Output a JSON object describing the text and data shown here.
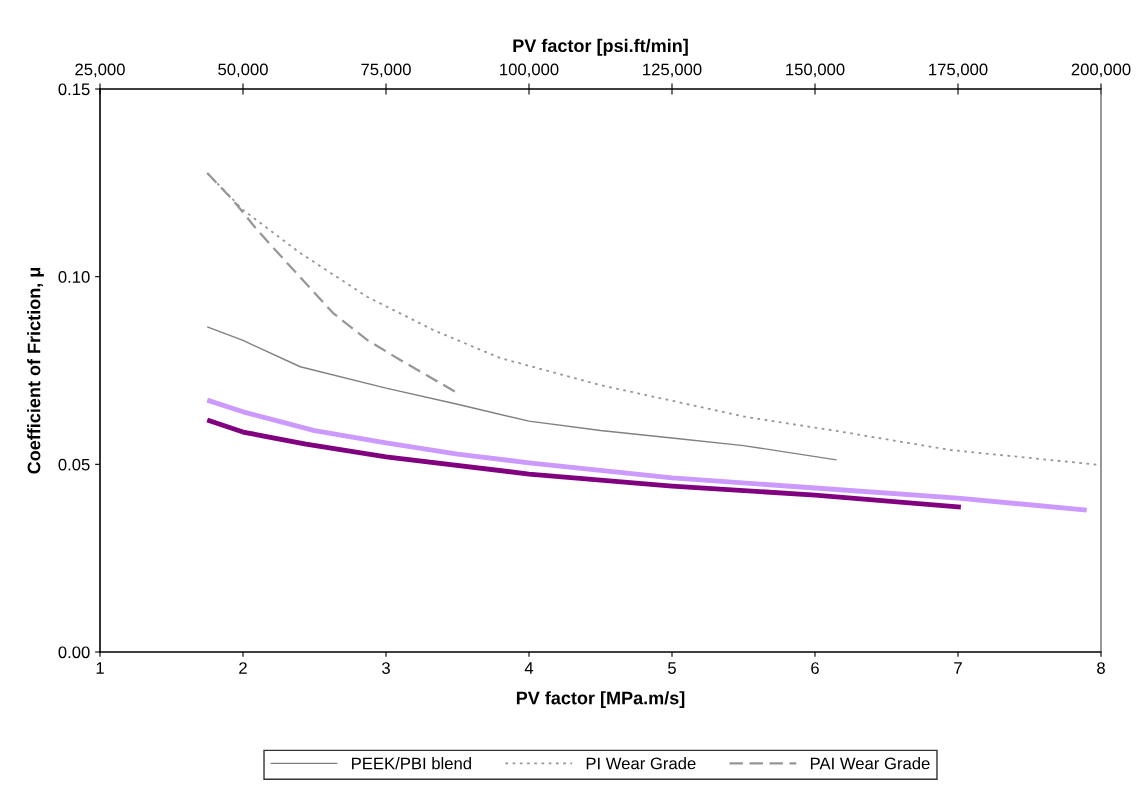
{
  "chart_data": {
    "type": "line",
    "xlabel": "PV factor [MPa.m/s]",
    "ylabel": "Coefficient of Friction, μ",
    "x2label": "PV factor [psi.ft/min]",
    "xlim": [
      1,
      8
    ],
    "xticks": [
      1,
      2,
      3,
      4,
      5,
      6,
      7,
      8
    ],
    "ylim": [
      0,
      0.15
    ],
    "yticks": [
      {
        "value": 0,
        "label": "0.00"
      },
      {
        "value": 0.05,
        "label": "0.05"
      },
      {
        "value": 0.1,
        "label": "0.10"
      },
      {
        "value": 0.15,
        "label": "0.15"
      }
    ],
    "x2lim": [
      25000,
      200000
    ],
    "x2ticks": [
      {
        "value": 25000,
        "label": "25,000"
      },
      {
        "value": 50000,
        "label": "50,000"
      },
      {
        "value": 75000,
        "label": "75,000"
      },
      {
        "value": 100000,
        "label": "100,000"
      },
      {
        "value": 125000,
        "label": "125,000"
      },
      {
        "value": 150000,
        "label": "150,000"
      },
      {
        "value": 175000,
        "label": "175,000"
      },
      {
        "value": 200000,
        "label": "200,000"
      }
    ],
    "grid": false,
    "legend": "bottom",
    "series": [
      {
        "color": "#800080",
        "line_style": "solid",
        "x": [
          1.75,
          2.0,
          2.44,
          3.0,
          4.0,
          5.0,
          6.0,
          7.02
        ],
        "values": [
          0.0618,
          0.0586,
          0.0554,
          0.052,
          0.0474,
          0.0442,
          0.0418,
          0.0386
        ]
      },
      {
        "color": "#cc99ff",
        "line_style": "solid",
        "x": [
          1.75,
          2.0,
          2.5,
          3.0,
          3.5,
          4.0,
          5.0,
          6.0,
          7.0,
          7.9
        ],
        "values": [
          0.0671,
          0.064,
          0.059,
          0.0557,
          0.0527,
          0.0504,
          0.0464,
          0.0437,
          0.041,
          0.0378
        ]
      },
      {
        "name": "PEEK/PBI blend",
        "color": "#808080",
        "line_style": "solid",
        "x": [
          1.75,
          2.0,
          2.4,
          3.0,
          3.5,
          4.0,
          4.5,
          5.0,
          5.5,
          6.15
        ],
        "values": [
          0.0866,
          0.083,
          0.076,
          0.0703,
          0.066,
          0.0615,
          0.059,
          0.057,
          0.055,
          0.0512
        ]
      },
      {
        "name": "PI Wear Grade",
        "color": "#969696",
        "line_style": "dotted",
        "x": [
          1.75,
          2.0,
          2.4,
          2.87,
          3.33,
          3.8,
          4.5,
          5.52,
          6.15,
          6.95,
          8.0
        ],
        "values": [
          0.1276,
          0.1178,
          0.1063,
          0.0946,
          0.0858,
          0.0783,
          0.0711,
          0.0626,
          0.0589,
          0.0538,
          0.0498
        ]
      },
      {
        "name": "PAI Wear Grade",
        "color": "#969696",
        "line_style": "dashed",
        "x": [
          1.75,
          1.93,
          2.1,
          2.31,
          2.63,
          2.87,
          3.1,
          3.5
        ],
        "values": [
          0.1276,
          0.1204,
          0.1124,
          0.1036,
          0.0903,
          0.0831,
          0.0778,
          0.069
        ]
      }
    ]
  }
}
